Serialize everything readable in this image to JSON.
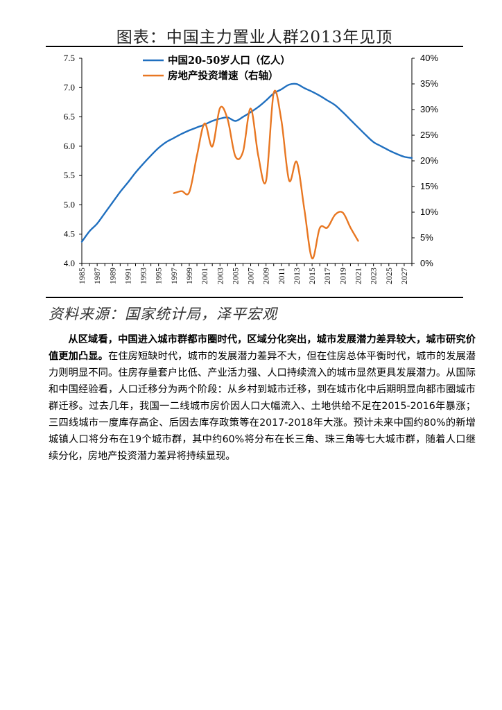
{
  "figure": {
    "title": "图表：中国主力置业人群2013年见顶",
    "source": "资料来源：国家统计局，泽平宏观"
  },
  "chart_data": {
    "type": "line",
    "title": "图表：中国主力置业人群2013年见顶",
    "xlabel": "",
    "ylabel": "",
    "x_ticks": [
      "1985",
      "1987",
      "1989",
      "1991",
      "1993",
      "1995",
      "1997",
      "1999",
      "2001",
      "2003",
      "2005",
      "2007",
      "2009",
      "2011",
      "2013",
      "2015",
      "2017",
      "2019",
      "2021",
      "2023",
      "2025",
      "2027"
    ],
    "xlim": [
      1985,
      2028
    ],
    "y_left": {
      "lim": [
        4.0,
        7.5
      ],
      "ticks": [
        "4.0",
        "4.5",
        "5.0",
        "5.5",
        "6.0",
        "6.5",
        "7.0",
        "7.5"
      ]
    },
    "y_right": {
      "lim": [
        0,
        40
      ],
      "ticks": [
        "0%",
        "5%",
        "10%",
        "15%",
        "20%",
        "25%",
        "30%",
        "35%",
        "40%"
      ]
    },
    "legend_position": "top-left",
    "grid": false,
    "series": [
      {
        "name": "中国20-50岁人口（亿人）",
        "axis": "left",
        "color": "#1f6fbf",
        "x": [
          1985,
          1986,
          1987,
          1988,
          1989,
          1990,
          1991,
          1992,
          1993,
          1994,
          1995,
          1996,
          1997,
          1998,
          1999,
          2000,
          2001,
          2002,
          2003,
          2004,
          2005,
          2006,
          2007,
          2008,
          2009,
          2010,
          2011,
          2012,
          2013,
          2014,
          2015,
          2016,
          2017,
          2018,
          2019,
          2020,
          2021,
          2022,
          2023,
          2024,
          2025,
          2026,
          2027,
          2028
        ],
        "values": [
          4.37,
          4.55,
          4.68,
          4.86,
          5.04,
          5.22,
          5.38,
          5.55,
          5.7,
          5.84,
          5.97,
          6.07,
          6.14,
          6.21,
          6.27,
          6.32,
          6.37,
          6.43,
          6.47,
          6.49,
          6.43,
          6.5,
          6.58,
          6.67,
          6.78,
          6.9,
          6.97,
          7.05,
          7.06,
          6.99,
          6.93,
          6.86,
          6.78,
          6.7,
          6.58,
          6.45,
          6.32,
          6.19,
          6.07,
          6.0,
          5.93,
          5.87,
          5.82,
          5.8
        ]
      },
      {
        "name": "房地产投资增速（右轴）",
        "axis": "right",
        "color": "#e87722",
        "x": [
          1997,
          1998,
          1999,
          2000,
          2001,
          2002,
          2003,
          2004,
          2005,
          2006,
          2007,
          2008,
          2009,
          2010,
          2011,
          2012,
          2013,
          2014,
          2015,
          2016,
          2017,
          2018,
          2019,
          2020,
          2021
        ],
        "values": [
          13.7,
          14.1,
          13.9,
          21.0,
          27.3,
          22.8,
          30.3,
          28.1,
          20.9,
          21.8,
          30.2,
          20.9,
          16.1,
          33.2,
          27.9,
          16.2,
          19.8,
          10.5,
          1.0,
          6.9,
          7.0,
          9.5,
          9.9,
          7.0,
          4.4
        ]
      }
    ]
  },
  "body": {
    "bold_lead": "从区域看，中国进入城市群都市圈时代，区域分化突出，城市发展潜力差异较大，城市研究价值更加凸显。",
    "text": "在住房短缺时代，城市的发展潜力差异不大，但在住房总体平衡时代，城市的发展潜力则明显不同。住房存量套户比低、产业活力强、人口持续流入的城市显然更具发展潜力。从国际和中国经验看，人口迁移分为两个阶段：从乡村到城市迁移，到在城市化中后期明显向都市圈城市群迁移。过去几年，我国一二线城市房价因人口大幅流入、土地供给不足在2015-2016年暴涨；三四线城市一度库存高企、后因去库存政策等在2017-2018年大涨。预计未来中国约80%的新增城镇人口将分布在19个城市群，其中约60%将分布在长三角、珠三角等七大城市群，随着人口继续分化，房地产投资潜力差异将持续显现。"
  }
}
